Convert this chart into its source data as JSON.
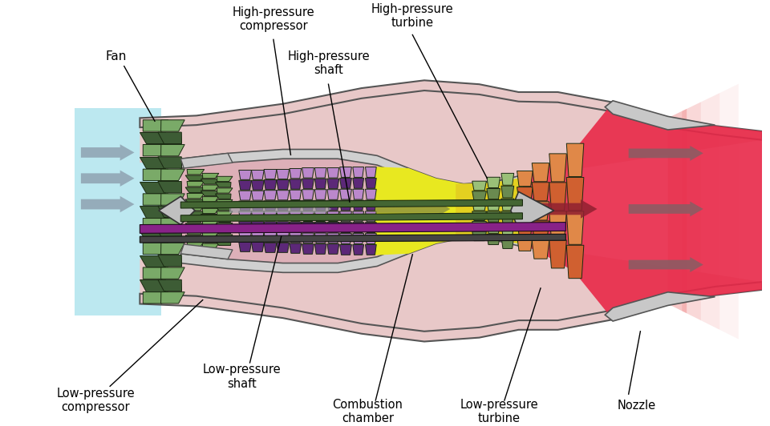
{
  "labels": {
    "fan": "Fan",
    "hp_compressor": "High-pressure\ncompressor",
    "hp_turbine": "High-pressure\nturbine",
    "hp_shaft": "High-pressure\nshaft",
    "lp_compressor": "Low-pressure\ncompressor",
    "lp_shaft": "Low-pressure\nshaft",
    "combustion": "Combustion\nchamber",
    "lp_turbine": "Low-pressure\nturbine",
    "nozzle": "Nozzle"
  },
  "colors": {
    "inlet_blue": "#bce8f0",
    "casing_pink": "#e8c8c8",
    "casing_edge": "#555555",
    "inner_wall": "#c8c8c8",
    "duct_pink": "#e0b8b8",
    "fan_dark": "#3d5c35",
    "fan_mid": "#567a48",
    "fan_light": "#7aaa68",
    "lp_blade_d": "#4a6e3a",
    "lp_blade_l": "#7aaa60",
    "hp_blade_purple_d": "#5c2878",
    "hp_blade_purple_m": "#8844aa",
    "hp_blade_purple_l": "#bb88cc",
    "combustion_yellow": "#e8e820",
    "combustion_amber": "#e0c020",
    "hot_red": "#e82848",
    "exhaust_pink": "#f09090",
    "shaft_green": "#446633",
    "shaft_purple": "#882288",
    "shaft_darkgray": "#445533",
    "centerbody": "#c0c0c0",
    "arrow_gray": "#8898a8",
    "arrow_darkred": "#904050",
    "arrow_olive": "#8a9040",
    "hp_turb_green": "#6a8a50",
    "hp_turb_light": "#9ac078",
    "lp_turb_orange": "#d06030",
    "lp_turb_light": "#e08848"
  }
}
